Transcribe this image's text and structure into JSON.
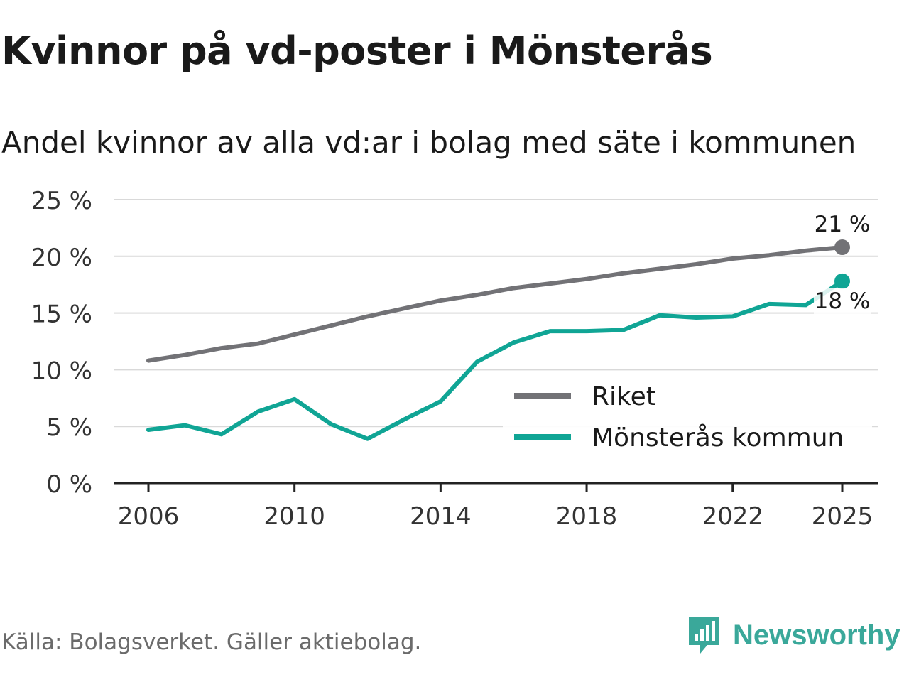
{
  "title": "Kvinnor på vd-poster i Mönsterås",
  "subtitle": "Andel kvinnor av alla vd:ar i bolag med säte i kommunen",
  "source": "Källa: Bolagsverket. Gäller aktiebolag.",
  "brand": "Newsworthy",
  "brand_icon": "newsworthy-logo-icon",
  "colors": {
    "riket": "#727276",
    "kommun": "#10a595",
    "grid": "#d9d9d9",
    "axis": "#222222",
    "brand": "#3aa89a"
  },
  "chart_data": {
    "type": "line",
    "title": "Kvinnor på vd-poster i Mönsterås",
    "subtitle": "Andel kvinnor av alla vd:ar i bolag med säte i kommunen",
    "xlabel": "",
    "ylabel": "",
    "x": [
      2006,
      2007,
      2008,
      2009,
      2010,
      2011,
      2012,
      2013,
      2014,
      2015,
      2016,
      2017,
      2018,
      2019,
      2020,
      2021,
      2022,
      2023,
      2024,
      2025
    ],
    "xticks": [
      2006,
      2010,
      2014,
      2018,
      2022,
      2025
    ],
    "xtick_labels": [
      "2006",
      "2010",
      "2014",
      "2018",
      "2022",
      "2025"
    ],
    "ylim": [
      0,
      25
    ],
    "yticks": [
      0,
      5,
      10,
      15,
      20,
      25
    ],
    "ytick_labels": [
      "0 %",
      "5 %",
      "10 %",
      "15 %",
      "20 %",
      "25 %"
    ],
    "grid": true,
    "legend_position": "bottom-right",
    "series": [
      {
        "name": "Riket",
        "color": "#727276",
        "values": [
          10.8,
          11.3,
          11.9,
          12.3,
          13.1,
          13.9,
          14.7,
          15.4,
          16.1,
          16.6,
          17.2,
          17.6,
          18.0,
          18.5,
          18.9,
          19.3,
          19.8,
          20.1,
          20.5,
          20.8
        ],
        "end_label": "21 %"
      },
      {
        "name": "Mönsterås kommun",
        "color": "#10a595",
        "values": [
          4.7,
          5.1,
          4.3,
          6.3,
          7.4,
          5.2,
          3.9,
          5.6,
          7.2,
          10.7,
          12.4,
          13.4,
          13.4,
          13.5,
          14.8,
          14.6,
          14.7,
          15.8,
          15.7,
          17.8
        ],
        "end_label": "18 %"
      }
    ]
  }
}
